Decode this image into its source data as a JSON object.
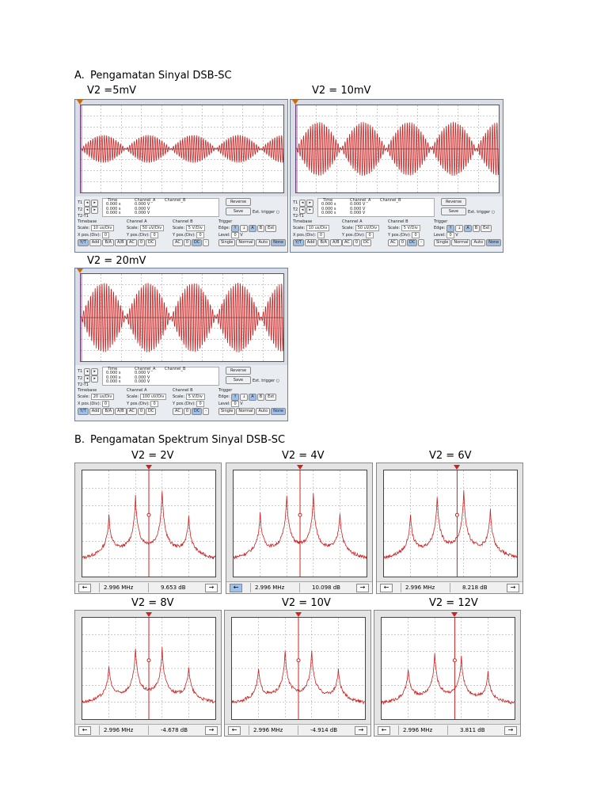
{
  "section_a": {
    "letter": "A.",
    "title": "Pengamatan Sinyal DSB-SC",
    "scopes": [
      {
        "label": "V2 =5mV",
        "timebase_scale": "10 us/Div",
        "cha_scale": "50 uV/Div",
        "chb_scale": "5 V/Div",
        "t1_time": "0.000 s",
        "t2_time": "0.000 s",
        "dt_time": "0.000 s",
        "t1_a": "0.000 V",
        "t2_a": "0.000 V",
        "dt_a": "0.000 V",
        "xpos": "0",
        "ypos_a": "0",
        "ypos_b": "0",
        "level": "0",
        "amplitude_level": 0.32
      },
      {
        "label": "V2 = 10mV",
        "timebase_scale": "10 us/Div",
        "cha_scale": "50 uV/Div",
        "chb_scale": "5 V/Div",
        "t1_time": "0.000 s",
        "t2_time": "0.000 s",
        "dt_time": "0.000 s",
        "t1_a": "0.000 V",
        "t2_a": "0.000 V",
        "dt_a": "0.000 V",
        "xpos": "0",
        "ypos_a": "0",
        "ypos_b": "0",
        "level": "0",
        "amplitude_level": 0.62
      },
      {
        "label": "V2 = 20mV",
        "timebase_scale": "20 us/Div",
        "cha_scale": "100 uV/Div",
        "chb_scale": "5 V/Div",
        "t1_time": "0.000 s",
        "t2_time": "0.000 s",
        "dt_time": "0.000 s",
        "t1_a": "0.000 V",
        "t2_a": "0.000 V",
        "dt_a": "0.000 V",
        "xpos": "0",
        "ypos_a": "0",
        "ypos_b": "0",
        "level": "0",
        "amplitude_level": 0.8
      }
    ],
    "ctrl": {
      "t1": "T1",
      "t2": "T2",
      "t2t1": "T2-T1",
      "time": "Time",
      "channel_a": "Channel_A",
      "channel_b": "Channel_B",
      "reverse": "Reverse",
      "save": "Save",
      "ext_trigger": "Ext. trigger",
      "timebase": "Timebase",
      "channel_a_h": "Channel A",
      "channel_b_h": "Channel B",
      "trigger": "Trigger",
      "scale": "Scale:",
      "xpos_label": "X pos.(Div):",
      "ypos_label": "Y pos.(Div):",
      "edge": "Edge:",
      "level_label": "Level:",
      "unit_v": "V",
      "yt": "Y/T",
      "add": "Add",
      "ba": "B/A",
      "ab": "A/B",
      "ac": "AC",
      "zero": "0",
      "dc": "DC",
      "minus": "-",
      "single": "Single",
      "normal": "Normal",
      "auto": "Auto",
      "none": "None",
      "ext": "Ext"
    }
  },
  "section_b": {
    "letter": "B.",
    "title": "Pengamatan Spektrum Sinyal DSB-SC",
    "spectra": [
      {
        "label": "V2 = 2V",
        "freq": "2.996 MHz",
        "db": "9.653 dB"
      },
      {
        "label": "V2 = 4V",
        "freq": "2.996 MHz",
        "db": "10.098 dB"
      },
      {
        "label": "V2 = 6V",
        "freq": "2.996 MHz",
        "db": "8.218 dB"
      },
      {
        "label": "V2 = 8V",
        "freq": "2.996 MHz",
        "db": "-4.678 dB"
      },
      {
        "label": "V2 = 10V",
        "freq": "2.996 MHz",
        "db": "-4.914 dB"
      },
      {
        "label": "V2 = 12V",
        "freq": "2.996 MHz",
        "db": "3.811 dB"
      }
    ],
    "left_arrow": "←",
    "right_arrow": "→"
  },
  "colors": {
    "trace": "#cc2222",
    "marker": "#d06a00",
    "grid": "#999999"
  }
}
